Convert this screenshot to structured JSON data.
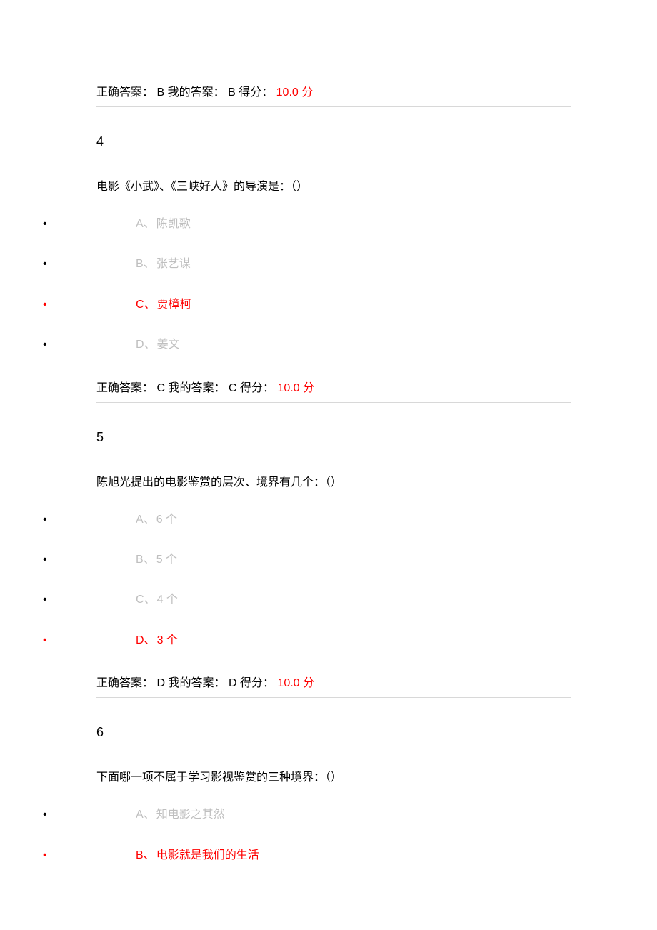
{
  "colors": {
    "text": "#000000",
    "muted": "#bfbfbf",
    "score_red": "#ff0000",
    "divider": "#d8d8d8",
    "background": "#ffffff"
  },
  "typography": {
    "body_fontsize_pt": 12,
    "qnum_fontsize_pt": 13,
    "font_family": "Microsoft YaHei"
  },
  "q3_answer": {
    "correct_label": "正确答案：",
    "correct_value": "B",
    "my_label": " 我的答案：",
    "my_value": "B",
    "score_label": " 得分：",
    "score_value": " 10.0 分"
  },
  "q4": {
    "number": "4",
    "text": "电影《小武》、《三峡好人》的导演是：（）",
    "options": [
      {
        "letter": "A、",
        "text": "陈凯歌",
        "correct": false
      },
      {
        "letter": "B、",
        "text": "张艺谋",
        "correct": false
      },
      {
        "letter": "C、",
        "text": "贾樟柯",
        "correct": true
      },
      {
        "letter": "D、",
        "text": "姜文",
        "correct": false
      }
    ],
    "answer": {
      "correct_label": "正确答案：",
      "correct_value": "C",
      "my_label": " 我的答案：",
      "my_value": "C",
      "score_label": " 得分：",
      "score_value": " 10.0 分"
    }
  },
  "q5": {
    "number": "5",
    "text": "陈旭光提出的电影鉴赏的层次、境界有几个：（）",
    "options": [
      {
        "letter": "A、",
        "text": "6 个",
        "correct": false
      },
      {
        "letter": "B、",
        "text": "5 个",
        "correct": false
      },
      {
        "letter": "C、",
        "text": "4 个",
        "correct": false
      },
      {
        "letter": "D、",
        "text": "3 个",
        "correct": true
      }
    ],
    "answer": {
      "correct_label": "正确答案：",
      "correct_value": "D",
      "my_label": " 我的答案：",
      "my_value": "D",
      "score_label": " 得分：",
      "score_value": " 10.0 分"
    }
  },
  "q6": {
    "number": "6",
    "text": "下面哪一项不属于学习影视鉴赏的三种境界：（）",
    "options": [
      {
        "letter": "A、",
        "text": "知电影之其然",
        "correct": false
      },
      {
        "letter": "B、",
        "text": "电影就是我们的生活",
        "correct": true
      }
    ]
  }
}
